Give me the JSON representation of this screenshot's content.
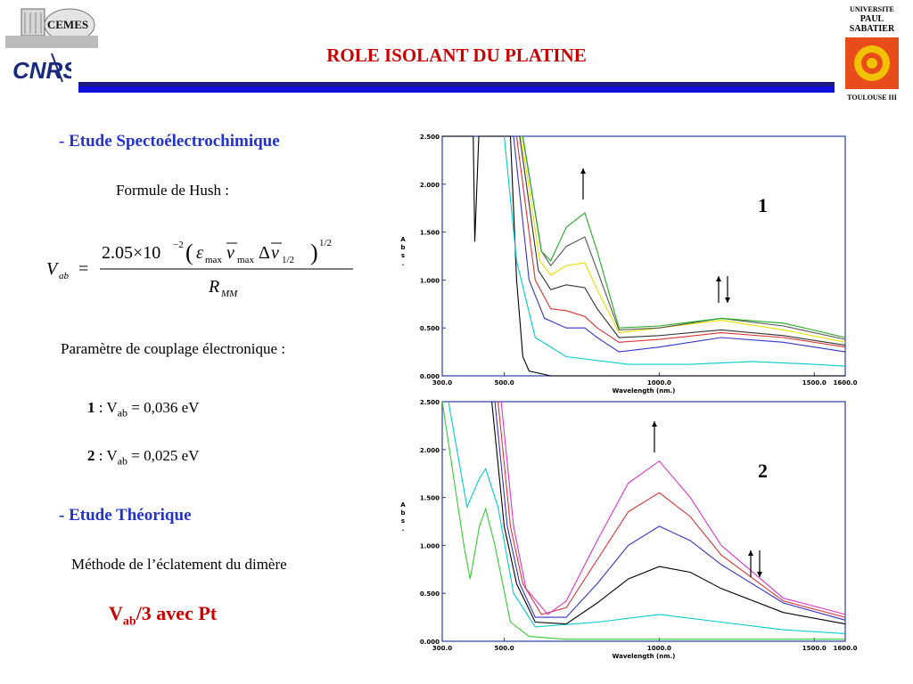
{
  "header": {
    "title": "ROLE ISOLANT DU PLATINE",
    "cemes_logo_text": "CEMES",
    "cnrs_logo_text": "CNRS",
    "ups_logo": {
      "line1": "UNIVERSITE",
      "line2": "PAUL",
      "line3": "SABATIER",
      "line4": "TOULOUSE III"
    }
  },
  "left": {
    "section1": "- Etude Spectoélectrochimique",
    "hush_label": "Formule de Hush :",
    "coupling_label": "Paramètre de couplage électronique :",
    "v1": {
      "num": "1",
      "text": " : V",
      "sub": "ab",
      "value": " = 0,036 eV"
    },
    "v2": {
      "num": "2",
      "text": " : V",
      "sub": "ab",
      "value": " = 0,025 eV"
    },
    "section2": "- Etude Théorique",
    "method": "Méthode de l’éclatement du dimère",
    "result": {
      "v": "V",
      "sub": "ab",
      "rest": "/3  avec Pt"
    }
  },
  "chart_data": [
    {
      "type": "line",
      "label": "1",
      "xlabel": "Wavelength (nm.)",
      "ylabel": "Abs.",
      "xlim": [
        300,
        1600
      ],
      "ylim": [
        0,
        2.5
      ],
      "x_ticks": [
        "300.0",
        "500.0",
        "1000.0",
        "1500.0",
        "1600.0"
      ],
      "y_ticks": [
        "0.000",
        "0.500",
        "1.000",
        "1.500",
        "2.000",
        "2.500"
      ],
      "series": [
        {
          "color": "#000000",
          "points": [
            [
              300,
              2.5
            ],
            [
              400,
              2.5
            ],
            [
              405,
              1.4
            ],
            [
              418,
              2.5
            ],
            [
              520,
              2.5
            ],
            [
              540,
              1.0
            ],
            [
              560,
              0.2
            ],
            [
              580,
              0.05
            ],
            [
              650,
              0.0
            ],
            [
              1600,
              0.0
            ]
          ]
        },
        {
          "color": "#00cccc",
          "points": [
            [
              500,
              2.5
            ],
            [
              540,
              1.2
            ],
            [
              600,
              0.4
            ],
            [
              700,
              0.2
            ],
            [
              900,
              0.12
            ],
            [
              1100,
              0.12
            ],
            [
              1300,
              0.15
            ],
            [
              1500,
              0.12
            ],
            [
              1600,
              0.1
            ]
          ]
        },
        {
          "color": "#3333cc",
          "points": [
            [
              530,
              2.5
            ],
            [
              580,
              1.0
            ],
            [
              630,
              0.6
            ],
            [
              700,
              0.5
            ],
            [
              760,
              0.5
            ],
            [
              800,
              0.4
            ],
            [
              870,
              0.25
            ],
            [
              1000,
              0.3
            ],
            [
              1200,
              0.4
            ],
            [
              1400,
              0.35
            ],
            [
              1600,
              0.25
            ]
          ]
        },
        {
          "color": "#dd3333",
          "points": [
            [
              540,
              2.5
            ],
            [
              600,
              1.0
            ],
            [
              650,
              0.7
            ],
            [
              700,
              0.68
            ],
            [
              760,
              0.62
            ],
            [
              800,
              0.5
            ],
            [
              870,
              0.35
            ],
            [
              1000,
              0.38
            ],
            [
              1200,
              0.45
            ],
            [
              1400,
              0.4
            ],
            [
              1600,
              0.3
            ]
          ]
        },
        {
          "color": "#333333",
          "points": [
            [
              550,
              2.5
            ],
            [
              610,
              1.1
            ],
            [
              650,
              0.9
            ],
            [
              700,
              0.95
            ],
            [
              760,
              0.92
            ],
            [
              800,
              0.7
            ],
            [
              870,
              0.4
            ],
            [
              1000,
              0.42
            ],
            [
              1200,
              0.48
            ],
            [
              1400,
              0.42
            ],
            [
              1600,
              0.32
            ]
          ]
        },
        {
          "color": "#e8e000",
          "points": [
            [
              555,
              2.5
            ],
            [
              615,
              1.2
            ],
            [
              650,
              1.05
            ],
            [
              700,
              1.15
            ],
            [
              760,
              1.18
            ],
            [
              800,
              0.9
            ],
            [
              870,
              0.45
            ],
            [
              1000,
              0.5
            ],
            [
              1200,
              0.58
            ],
            [
              1400,
              0.48
            ],
            [
              1600,
              0.35
            ]
          ]
        },
        {
          "color": "#555555",
          "points": [
            [
              560,
              2.5
            ],
            [
              620,
              1.3
            ],
            [
              650,
              1.15
            ],
            [
              700,
              1.35
            ],
            [
              760,
              1.45
            ],
            [
              800,
              1.1
            ],
            [
              870,
              0.48
            ],
            [
              1000,
              0.5
            ],
            [
              1200,
              0.6
            ],
            [
              1400,
              0.52
            ],
            [
              1600,
              0.38
            ]
          ]
        },
        {
          "color": "#22aa22",
          "points": [
            [
              560,
              2.5
            ],
            [
              620,
              1.3
            ],
            [
              650,
              1.2
            ],
            [
              700,
              1.55
            ],
            [
              760,
              1.7
            ],
            [
              800,
              1.3
            ],
            [
              870,
              0.5
            ],
            [
              1000,
              0.52
            ],
            [
              1200,
              0.6
            ],
            [
              1400,
              0.55
            ],
            [
              1600,
              0.4
            ]
          ]
        }
      ]
    },
    {
      "type": "line",
      "label": "2",
      "xlabel": "Wavelength (nm.)",
      "ylabel": "Abs.",
      "xlim": [
        300,
        1600
      ],
      "ylim": [
        0,
        2.5
      ],
      "x_ticks": [
        "300.0",
        "500.0",
        "1000.0",
        "1500.0",
        "1600.0"
      ],
      "y_ticks": [
        "0.000",
        "0.500",
        "1.000",
        "1.500",
        "2.000",
        "2.500"
      ],
      "series": [
        {
          "color": "#33cc33",
          "points": [
            [
              300,
              2.5
            ],
            [
              370,
              1.0
            ],
            [
              390,
              0.65
            ],
            [
              420,
              1.2
            ],
            [
              440,
              1.38
            ],
            [
              470,
              1.0
            ],
            [
              520,
              0.2
            ],
            [
              580,
              0.05
            ],
            [
              700,
              0.02
            ],
            [
              1600,
              0.02
            ]
          ]
        },
        {
          "color": "#00cccc",
          "points": [
            [
              320,
              2.5
            ],
            [
              380,
              1.4
            ],
            [
              420,
              1.7
            ],
            [
              440,
              1.8
            ],
            [
              480,
              1.4
            ],
            [
              530,
              0.5
            ],
            [
              600,
              0.15
            ],
            [
              800,
              0.2
            ],
            [
              1000,
              0.28
            ],
            [
              1200,
              0.2
            ],
            [
              1400,
              0.12
            ],
            [
              1600,
              0.08
            ]
          ]
        },
        {
          "color": "#000000",
          "points": [
            [
              460,
              2.5
            ],
            [
              500,
              1.2
            ],
            [
              540,
              0.6
            ],
            [
              600,
              0.2
            ],
            [
              700,
              0.18
            ],
            [
              800,
              0.4
            ],
            [
              900,
              0.65
            ],
            [
              1000,
              0.78
            ],
            [
              1100,
              0.72
            ],
            [
              1200,
              0.55
            ],
            [
              1400,
              0.3
            ],
            [
              1600,
              0.18
            ]
          ]
        },
        {
          "color": "#3333cc",
          "points": [
            [
              470,
              2.5
            ],
            [
              510,
              1.2
            ],
            [
              550,
              0.6
            ],
            [
              600,
              0.25
            ],
            [
              700,
              0.25
            ],
            [
              800,
              0.6
            ],
            [
              900,
              1.0
            ],
            [
              1000,
              1.2
            ],
            [
              1100,
              1.05
            ],
            [
              1200,
              0.8
            ],
            [
              1400,
              0.4
            ],
            [
              1600,
              0.22
            ]
          ]
        },
        {
          "color": "#dd3333",
          "points": [
            [
              480,
              2.5
            ],
            [
              520,
              1.2
            ],
            [
              560,
              0.6
            ],
            [
              620,
              0.28
            ],
            [
              700,
              0.35
            ],
            [
              800,
              0.85
            ],
            [
              900,
              1.35
            ],
            [
              1000,
              1.55
            ],
            [
              1100,
              1.3
            ],
            [
              1200,
              0.9
            ],
            [
              1400,
              0.42
            ],
            [
              1600,
              0.25
            ]
          ]
        },
        {
          "color": "#dd33cc",
          "points": [
            [
              490,
              2.5
            ],
            [
              530,
              1.2
            ],
            [
              570,
              0.55
            ],
            [
              640,
              0.28
            ],
            [
              700,
              0.42
            ],
            [
              800,
              1.05
            ],
            [
              900,
              1.65
            ],
            [
              1000,
              1.88
            ],
            [
              1100,
              1.5
            ],
            [
              1200,
              1.0
            ],
            [
              1400,
              0.45
            ],
            [
              1600,
              0.28
            ]
          ]
        }
      ]
    }
  ]
}
